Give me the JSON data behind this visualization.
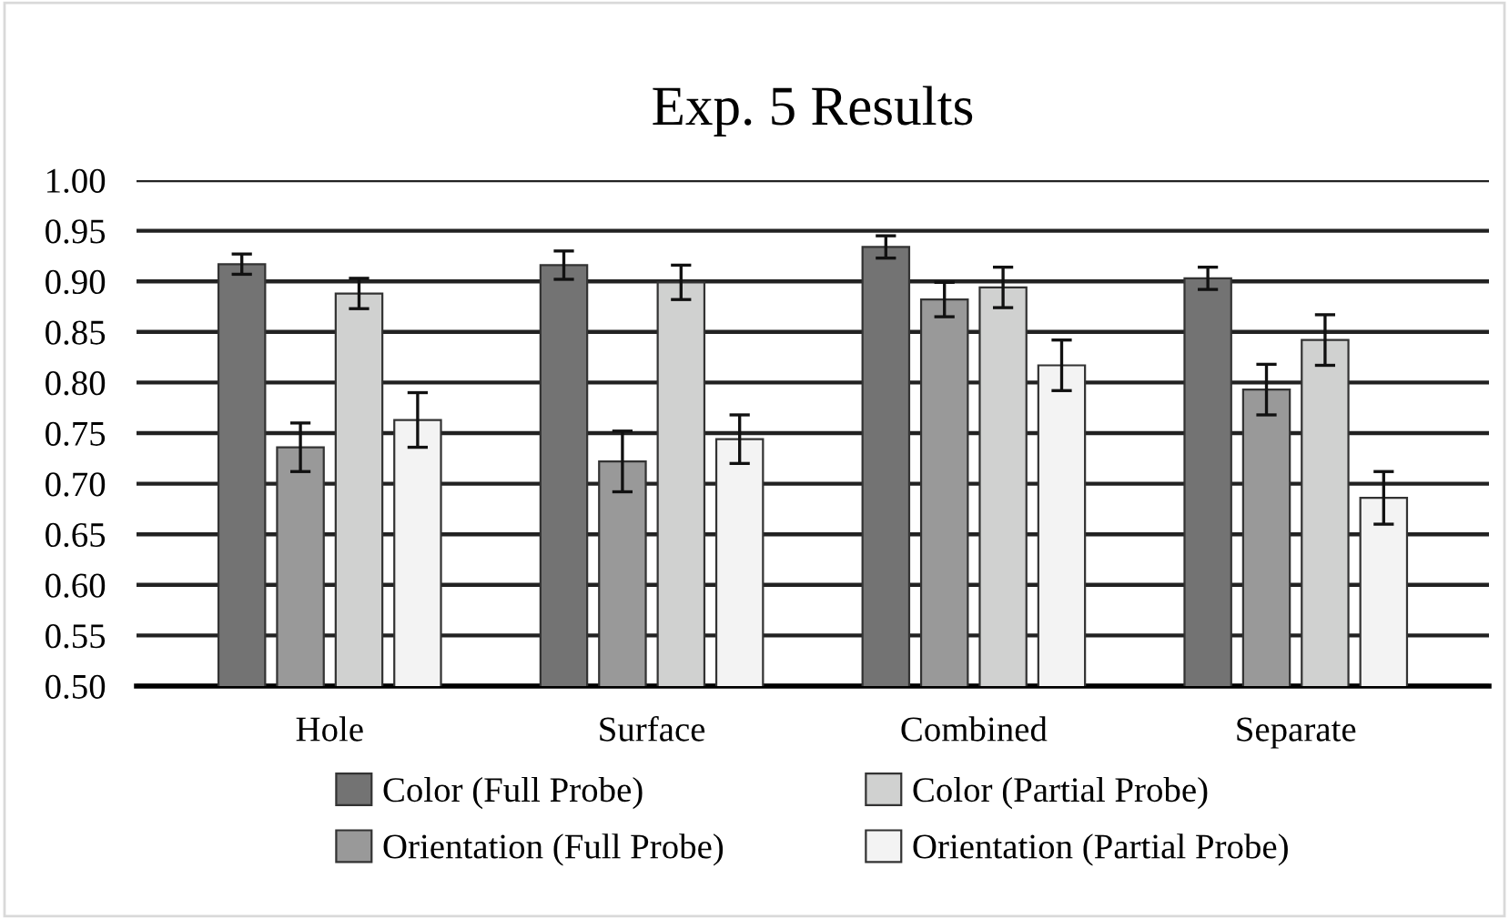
{
  "chart_data": {
    "type": "bar",
    "title": "Exp. 5 Results",
    "categories": [
      "Hole",
      "Surface",
      "Combined",
      "Separate"
    ],
    "series": [
      {
        "name": "Color (Full Probe)",
        "color": "#737373",
        "values": [
          0.917,
          0.916,
          0.934,
          0.903
        ],
        "errors": [
          0.01,
          0.014,
          0.011,
          0.011
        ]
      },
      {
        "name": "Orientation (Full Probe)",
        "color": "#999999",
        "values": [
          0.736,
          0.722,
          0.882,
          0.793
        ],
        "errors": [
          0.024,
          0.03,
          0.017,
          0.025
        ]
      },
      {
        "name": "Color (Partial Probe)",
        "color": "#d0d1d0",
        "values": [
          0.888,
          0.899,
          0.894,
          0.842
        ],
        "errors": [
          0.015,
          0.017,
          0.02,
          0.025
        ]
      },
      {
        "name": "Orientation (Partial Probe)",
        "color": "#f3f3f3",
        "values": [
          0.763,
          0.744,
          0.817,
          0.686
        ],
        "errors": [
          0.027,
          0.024,
          0.025,
          0.026
        ]
      }
    ],
    "ylim": [
      0.5,
      1.0
    ],
    "yticks": [
      {
        "value": 0.5,
        "label": "0.50"
      },
      {
        "value": 0.55,
        "label": "0.55"
      },
      {
        "value": 0.6,
        "label": "0.60"
      },
      {
        "value": 0.65,
        "label": "0.65"
      },
      {
        "value": 0.7,
        "label": "0.70"
      },
      {
        "value": 0.75,
        "label": "0.75"
      },
      {
        "value": 0.8,
        "label": "0.80"
      },
      {
        "value": 0.85,
        "label": "0.85"
      },
      {
        "value": 0.9,
        "label": "0.90"
      },
      {
        "value": 0.95,
        "label": "0.95"
      },
      {
        "value": 1.0,
        "label": "1.00"
      }
    ],
    "grid": "y",
    "legend": "bottom"
  }
}
